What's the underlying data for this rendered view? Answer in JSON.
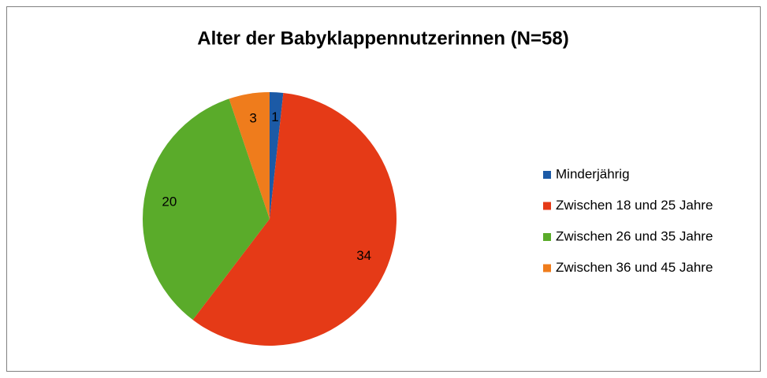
{
  "chart_data": {
    "type": "pie",
    "title": "Alter der Babyklappennutzerinnen (N=58)",
    "categories": [
      "Minderjährig",
      "Zwischen 18 und 25 Jahre",
      "Zwischen 26 und 35 Jahre",
      "Zwischen 36 und 45 Jahre"
    ],
    "values": [
      1,
      34,
      20,
      3
    ],
    "colors": [
      "#1c5aa6",
      "#e53a17",
      "#5aab2a",
      "#ef7c1c"
    ],
    "legend": "right"
  }
}
